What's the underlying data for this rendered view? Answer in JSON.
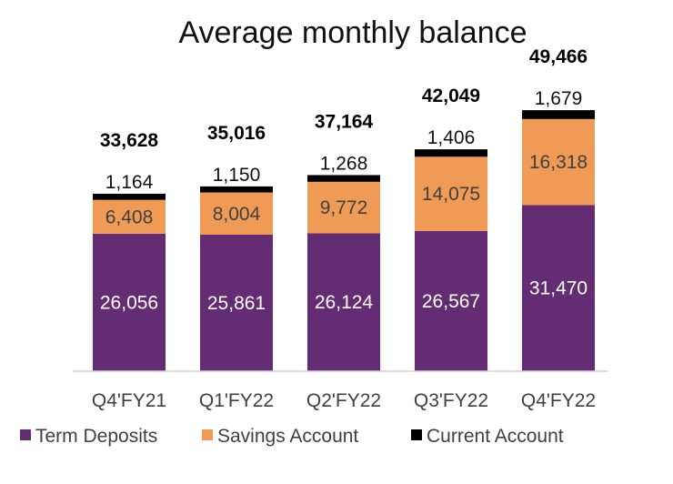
{
  "chart_data": {
    "type": "bar",
    "stacked": true,
    "title": "Average monthly balance",
    "categories": [
      "Q4'FY21",
      "Q1'FY22",
      "Q2'FY22",
      "Q3'FY22",
      "Q4'FY22"
    ],
    "series": [
      {
        "name": "Term Deposits",
        "values": [
          26056,
          25861,
          26124,
          26567,
          31470
        ],
        "labels": [
          "26,056",
          "25,861",
          "26,124",
          "26,567",
          "31,470"
        ],
        "color": "#642c72",
        "label_color": "#ffffff"
      },
      {
        "name": "Savings Account",
        "values": [
          6408,
          8004,
          9772,
          14075,
          16318
        ],
        "labels": [
          "6,408",
          "8,004",
          "9,772",
          "14,075",
          "16,318"
        ],
        "color": "#ef9b55",
        "label_color": "#404040"
      },
      {
        "name": "Current Account",
        "values": [
          1164,
          1150,
          1268,
          1406,
          1679
        ],
        "labels": [
          "1,164",
          "1,150",
          "1,268",
          "1,406",
          "1,679"
        ],
        "color": "#000000",
        "label_color": "#111111"
      }
    ],
    "totals": [
      33628,
      35016,
      37164,
      42049,
      49466
    ],
    "total_labels": [
      "33,628",
      "35,016",
      "37,164",
      "42,049",
      "49,466"
    ],
    "legend_position": "bottom",
    "grid": false
  }
}
